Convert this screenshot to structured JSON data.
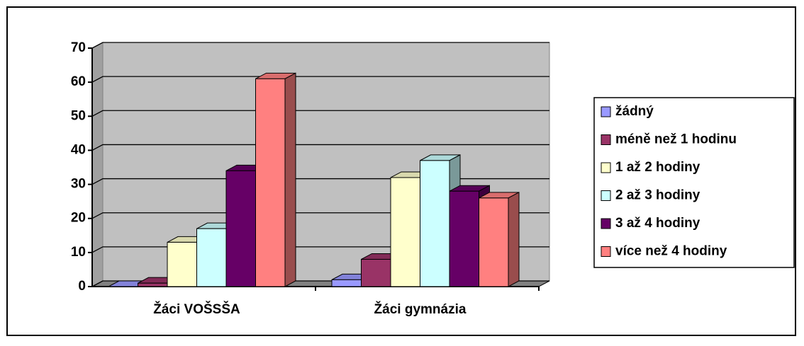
{
  "chart_data": {
    "type": "bar3d",
    "categories": [
      "Žáci VOŠSŠA",
      "Žáci gymnázia"
    ],
    "series": [
      {
        "name": "žádný",
        "color": "#9999ff",
        "values": [
          0,
          2
        ]
      },
      {
        "name": "méně než 1 hodinu",
        "color": "#993366",
        "values": [
          1,
          8
        ]
      },
      {
        "name": "1 až 2 hodiny",
        "color": "#ffffcc",
        "values": [
          13,
          32
        ]
      },
      {
        "name": "2 až 3 hodiny",
        "color": "#ccffff",
        "values": [
          17,
          37
        ]
      },
      {
        "name": "3 až 4 hodiny",
        "color": "#660066",
        "values": [
          34,
          28
        ]
      },
      {
        "name": "více než 4 hodiny",
        "color": "#ff8080",
        "values": [
          61,
          26
        ]
      }
    ],
    "ylim": [
      0,
      70
    ],
    "yticks": [
      0,
      10,
      20,
      30,
      40,
      50,
      60,
      70
    ],
    "grid": true,
    "legend": "right"
  }
}
